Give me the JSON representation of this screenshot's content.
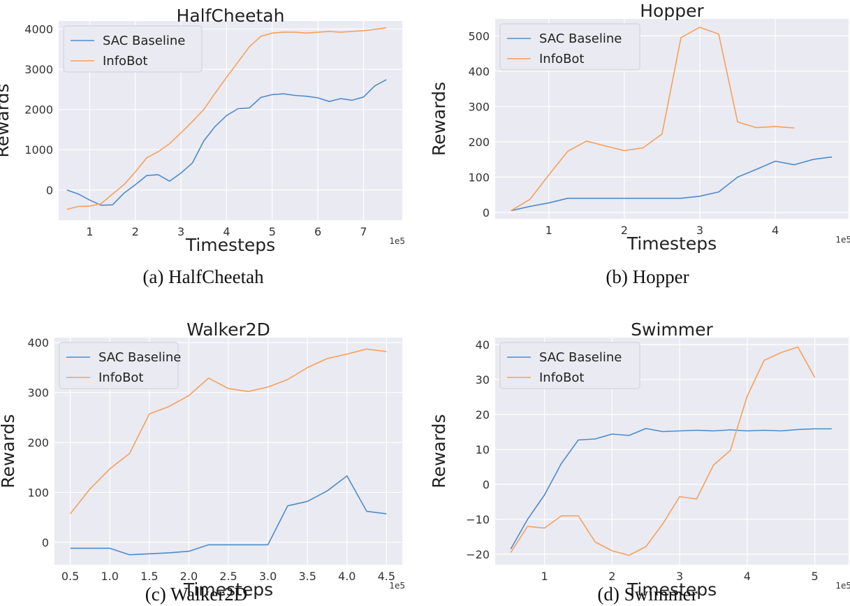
{
  "colors": {
    "sac": "#4c8ccc",
    "infobot": "#f5a05a",
    "plot_bg": "#eaeaf2",
    "grid": "#ffffff"
  },
  "captions": [
    "(a) HalfCheetah",
    "(b) Hopper",
    "(c) Walker2D",
    "(d) Swimmer"
  ],
  "chart_data": [
    {
      "type": "line",
      "title": "HalfCheetah",
      "xlabel": "Timesteps",
      "ylabel": "Rewards",
      "x_offset_label": "1e5",
      "xlim": [
        0.32,
        7.85
      ],
      "ylim": [
        -750,
        4200
      ],
      "xticks": [
        1,
        2,
        3,
        4,
        5,
        6,
        7
      ],
      "xtick_labels": [
        "1",
        "2",
        "3",
        "4",
        "5",
        "6",
        "7"
      ],
      "yticks": [
        0,
        1000,
        2000,
        3000,
        4000
      ],
      "ytick_labels": [
        "0",
        "1000",
        "2000",
        "3000",
        "4000"
      ],
      "legend_position": "top-left",
      "series": [
        {
          "name": "SAC Baseline",
          "color_key": "sac",
          "x": [
            0.5,
            0.75,
            1.0,
            1.25,
            1.5,
            1.75,
            2.0,
            2.25,
            2.5,
            2.75,
            3.0,
            3.25,
            3.5,
            3.75,
            4.0,
            4.25,
            4.5,
            4.75,
            5.0,
            5.25,
            5.5,
            5.75,
            6.0,
            6.25,
            6.5,
            6.75,
            7.0,
            7.25,
            7.5
          ],
          "y": [
            0,
            -100,
            -250,
            -380,
            -370,
            -80,
            130,
            360,
            380,
            220,
            420,
            670,
            1220,
            1580,
            1850,
            2020,
            2040,
            2300,
            2370,
            2390,
            2350,
            2330,
            2290,
            2200,
            2270,
            2230,
            2310,
            2590,
            2740
          ]
        },
        {
          "name": "InfoBot",
          "color_key": "infobot",
          "x": [
            0.5,
            0.75,
            1.0,
            1.25,
            1.5,
            1.75,
            2.0,
            2.25,
            2.5,
            2.75,
            3.0,
            3.25,
            3.5,
            3.75,
            4.0,
            4.25,
            4.5,
            4.75,
            5.0,
            5.25,
            5.5,
            5.75,
            6.0,
            6.25,
            6.5,
            6.75,
            7.0,
            7.25,
            7.5
          ],
          "y": [
            -480,
            -410,
            -400,
            -340,
            -100,
            130,
            450,
            800,
            950,
            1150,
            1420,
            1700,
            2000,
            2410,
            2800,
            3180,
            3560,
            3820,
            3900,
            3920,
            3920,
            3900,
            3920,
            3940,
            3920,
            3940,
            3960,
            3990,
            4030
          ]
        }
      ]
    },
    {
      "type": "line",
      "title": "Hopper",
      "xlabel": "Timesteps",
      "ylabel": "Rewards",
      "x_offset_label": "1e5",
      "xlim": [
        0.29,
        4.97
      ],
      "ylim": [
        -18,
        548
      ],
      "xticks": [
        1,
        2,
        3,
        4
      ],
      "xtick_labels": [
        "1",
        "2",
        "3",
        "4"
      ],
      "yticks": [
        0,
        100,
        200,
        300,
        400,
        500
      ],
      "ytick_labels": [
        "0",
        "100",
        "200",
        "300",
        "400",
        "500"
      ],
      "legend_position": "top-left",
      "series": [
        {
          "name": "SAC Baseline",
          "color_key": "sac",
          "x": [
            0.5,
            0.75,
            1.0,
            1.25,
            1.5,
            1.75,
            2.0,
            2.25,
            2.5,
            2.75,
            3.0,
            3.25,
            3.5,
            3.75,
            4.0,
            4.25,
            4.5,
            4.75
          ],
          "y": [
            5,
            17,
            27,
            40,
            40,
            40,
            40,
            40,
            40,
            40,
            46,
            58,
            100,
            122,
            145,
            135,
            150,
            157
          ]
        },
        {
          "name": "InfoBot",
          "color_key": "infobot",
          "x": [
            0.5,
            0.75,
            1.0,
            1.25,
            1.5,
            1.75,
            2.0,
            2.25,
            2.5,
            2.75,
            3.0,
            3.25,
            3.5,
            3.75,
            4.0,
            4.25
          ],
          "y": [
            5,
            37,
            106,
            173,
            202,
            188,
            175,
            183,
            222,
            495,
            524,
            505,
            256,
            240,
            243,
            239
          ]
        }
      ]
    },
    {
      "type": "line",
      "title": "Walker2D",
      "xlabel": "Timesteps",
      "ylabel": "Rewards",
      "x_offset_label": "1e5",
      "xlim": [
        0.3,
        4.7
      ],
      "ylim": [
        -45,
        410
      ],
      "xticks": [
        0.5,
        1.0,
        1.5,
        2.0,
        2.5,
        3.0,
        3.5,
        4.0,
        4.5
      ],
      "xtick_labels": [
        "0.5",
        "1.0",
        "1.5",
        "2.0",
        "2.5",
        "3.0",
        "3.5",
        "4.0",
        "4.5"
      ],
      "yticks": [
        0,
        100,
        200,
        300,
        400
      ],
      "ytick_labels": [
        "0",
        "100",
        "200",
        "300",
        "400"
      ],
      "legend_position": "top-left",
      "series": [
        {
          "name": "SAC Baseline",
          "color_key": "sac",
          "x": [
            0.5,
            0.75,
            1.0,
            1.25,
            1.5,
            1.75,
            2.0,
            2.25,
            2.5,
            2.75,
            3.0,
            3.25,
            3.5,
            3.75,
            4.0,
            4.25,
            4.5
          ],
          "y": [
            -12,
            -12,
            -12,
            -25,
            -23,
            -21,
            -18,
            -5,
            -5,
            -5,
            -5,
            73,
            82,
            103,
            133,
            62,
            57
          ]
        },
        {
          "name": "InfoBot",
          "color_key": "infobot",
          "x": [
            0.5,
            0.75,
            1.0,
            1.25,
            1.5,
            1.75,
            2.0,
            2.25,
            2.5,
            2.75,
            3.0,
            3.25,
            3.5,
            3.75,
            4.0,
            4.25,
            4.5
          ],
          "y": [
            57,
            107,
            147,
            178,
            257,
            272,
            294,
            329,
            308,
            302,
            311,
            326,
            350,
            368,
            377,
            387,
            382
          ]
        }
      ]
    },
    {
      "type": "line",
      "title": "Swimmer",
      "xlabel": "Timesteps",
      "ylabel": "Rewards",
      "x_offset_label": "1e5",
      "xlim": [
        0.27,
        5.5
      ],
      "ylim": [
        -23,
        42
      ],
      "xticks": [
        1,
        2,
        3,
        4,
        5
      ],
      "xtick_labels": [
        "1",
        "2",
        "3",
        "4",
        "5"
      ],
      "yticks": [
        -20,
        -10,
        0,
        10,
        20,
        30,
        40
      ],
      "ytick_labels": [
        "−20",
        "−10",
        "0",
        "10",
        "20",
        "30",
        "40"
      ],
      "legend_position": "top-left",
      "series": [
        {
          "name": "SAC Baseline",
          "color_key": "sac",
          "x": [
            0.5,
            0.75,
            1.0,
            1.25,
            1.5,
            1.75,
            2.0,
            2.25,
            2.5,
            2.75,
            3.0,
            3.25,
            3.5,
            3.75,
            4.0,
            4.25,
            4.5,
            4.75,
            5.0,
            5.25
          ],
          "y": [
            -18.5,
            -10,
            -3,
            6,
            12.7,
            13,
            14.4,
            14,
            16,
            15.1,
            15.3,
            15.5,
            15.3,
            15.6,
            15.3,
            15.5,
            15.3,
            15.7,
            15.9,
            15.9
          ]
        },
        {
          "name": "InfoBot",
          "color_key": "infobot",
          "x": [
            0.5,
            0.75,
            1.0,
            1.25,
            1.5,
            1.75,
            2.0,
            2.25,
            2.5,
            2.75,
            3.0,
            3.25,
            3.5,
            3.75,
            4.0,
            4.25,
            4.5,
            4.75,
            5.0
          ],
          "y": [
            -19.5,
            -12,
            -12.5,
            -9,
            -9,
            -16.5,
            -19,
            -20.3,
            -17.8,
            -11.3,
            -3.5,
            -4.2,
            5.5,
            9.7,
            25.3,
            35.5,
            37.7,
            39.3,
            30.6
          ]
        }
      ]
    }
  ]
}
